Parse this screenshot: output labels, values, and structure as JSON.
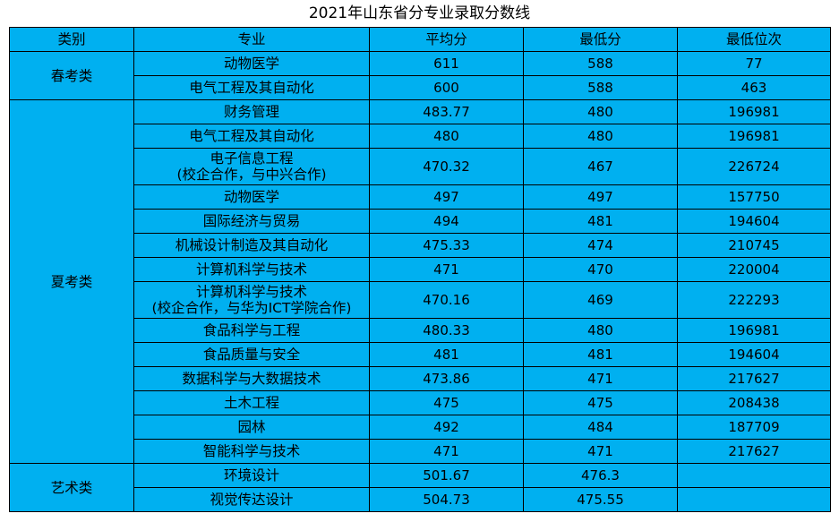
{
  "title": "2021年山东省分专业录取分数线",
  "headers": [
    "类别",
    "专业",
    "平均分",
    "最低分",
    "最低位次"
  ],
  "groups": [
    {
      "category": "春考类",
      "rows": [
        {
          "major": [
            "动物医学"
          ],
          "avg": "611",
          "min": "588",
          "rank": "77"
        },
        {
          "major": [
            "电气工程及其自动化"
          ],
          "avg": "600",
          "min": "588",
          "rank": "463"
        }
      ]
    },
    {
      "category": "夏考类",
      "rows": [
        {
          "major": [
            "财务管理"
          ],
          "avg": "483.77",
          "min": "480",
          "rank": "196981"
        },
        {
          "major": [
            "电气工程及其自动化"
          ],
          "avg": "480",
          "min": "480",
          "rank": "196981"
        },
        {
          "major": [
            "电子信息工程",
            "(校企合作，与中兴合作)"
          ],
          "avg": "470.32",
          "min": "467",
          "rank": "226724"
        },
        {
          "major": [
            "动物医学"
          ],
          "avg": "497",
          "min": "497",
          "rank": "157750"
        },
        {
          "major": [
            "国际经济与贸易"
          ],
          "avg": "494",
          "min": "481",
          "rank": "194604"
        },
        {
          "major": [
            "机械设计制造及其自动化"
          ],
          "avg": "475.33",
          "min": "474",
          "rank": "210745"
        },
        {
          "major": [
            "计算机科学与技术"
          ],
          "avg": "471",
          "min": "470",
          "rank": "220004"
        },
        {
          "major": [
            "计算机科学与技术",
            "(校企合作，与华为ICT学院合作)"
          ],
          "avg": "470.16",
          "min": "469",
          "rank": "222293"
        },
        {
          "major": [
            "食品科学与工程"
          ],
          "avg": "480.33",
          "min": "480",
          "rank": "196981"
        },
        {
          "major": [
            "食品质量与安全"
          ],
          "avg": "481",
          "min": "481",
          "rank": "194604"
        },
        {
          "major": [
            "数据科学与大数据技术"
          ],
          "avg": "473.86",
          "min": "471",
          "rank": "217627"
        },
        {
          "major": [
            "土木工程"
          ],
          "avg": "475",
          "min": "475",
          "rank": "208438"
        },
        {
          "major": [
            "园林"
          ],
          "avg": "492",
          "min": "484",
          "rank": "187709"
        },
        {
          "major": [
            "智能科学与技术"
          ],
          "avg": "471",
          "min": "471",
          "rank": "217627"
        }
      ]
    },
    {
      "category": "艺术类",
      "rows": [
        {
          "major": [
            "环境设计"
          ],
          "avg": "501.67",
          "min": "476.3",
          "rank": ""
        },
        {
          "major": [
            "视觉传达设计"
          ],
          "avg": "504.73",
          "min": "475.55",
          "rank": ""
        }
      ]
    }
  ]
}
